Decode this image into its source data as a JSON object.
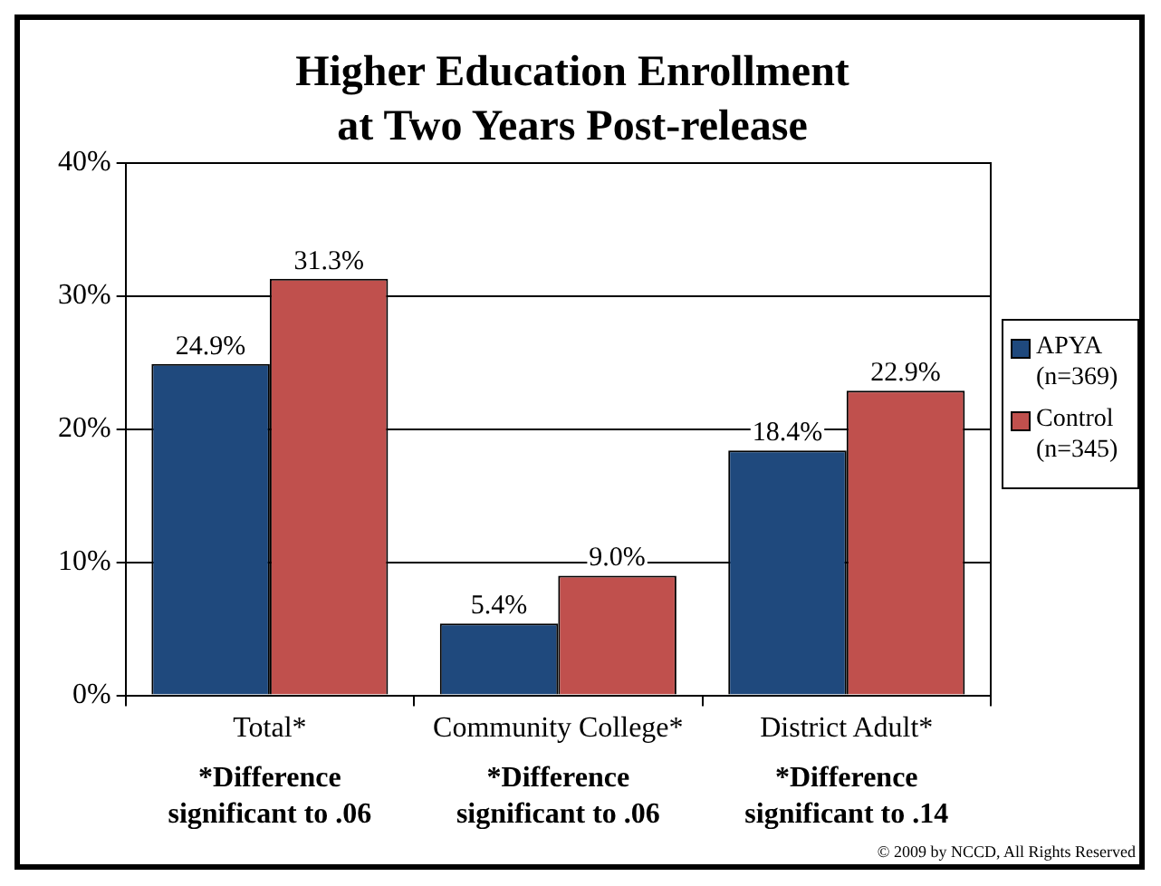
{
  "chart_data": {
    "type": "bar",
    "title": "Higher Education Enrollment\nat Two Years Post-release",
    "categories": [
      "Total*",
      "Community College*",
      "District Adult*"
    ],
    "series": [
      {
        "name": "APYA (n=369)",
        "color": "#1f497d",
        "values": [
          24.9,
          5.4,
          18.4
        ],
        "value_labels": [
          "24.9%",
          "5.4%",
          "18.4%"
        ]
      },
      {
        "name": "Control (n=345)",
        "color": "#c0504d",
        "values": [
          31.3,
          9.0,
          22.9
        ],
        "value_labels": [
          "31.3%",
          "9.0%",
          "22.9%"
        ]
      }
    ],
    "ylim": [
      0,
      40
    ],
    "yticks": [
      {
        "value": 0,
        "label": "0%"
      },
      {
        "value": 10,
        "label": "10%"
      },
      {
        "value": 20,
        "label": "20%"
      },
      {
        "value": 30,
        "label": "30%"
      },
      {
        "value": 40,
        "label": "40%"
      }
    ],
    "grid": "y",
    "legend": "right",
    "annotations": [
      "*Difference significant to .06",
      "*Difference significant to .06",
      "*Difference significant to .14",
      "© 2009 by NCCD, All Rights Reserved"
    ]
  }
}
